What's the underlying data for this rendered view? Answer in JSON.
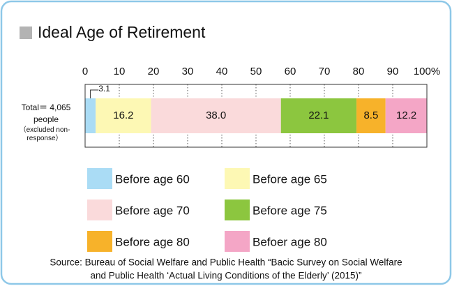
{
  "chart_data": {
    "type": "stacked-bar-horizontal",
    "title": "Ideal Age of Retirement",
    "categories": [
      "Total＝ 4,065 people"
    ],
    "category_note": "（excluded non-response）",
    "series": [
      {
        "name": "Before age 60",
        "color": "#aadcf5",
        "values": [
          3.1
        ]
      },
      {
        "name": "Before age 65",
        "color": "#fdf8b4",
        "values": [
          16.2
        ]
      },
      {
        "name": "Before age 70",
        "color": "#fadadb",
        "values": [
          38.0
        ],
        "value_labels": [
          "38.0"
        ]
      },
      {
        "name": "Before age 75",
        "color": "#8cc63f",
        "values": [
          22.1
        ]
      },
      {
        "name": "Before age 80",
        "color": "#f7b22a",
        "values": [
          8.5
        ]
      },
      {
        "name": "Befoer age 80",
        "color": "#f4a6c6",
        "values": [
          12.2
        ]
      }
    ],
    "xlim": [
      0,
      100
    ],
    "xticks": [
      0,
      10,
      20,
      30,
      40,
      50,
      60,
      70,
      80,
      90,
      {
        "value": 100,
        "label": "100%"
      }
    ],
    "grid": true,
    "source_lines": [
      "Source: Bureau of Social Welfare and Public Health “Bacic Survey on Social Welfare",
      "and Public Health ‘Actual Living Conditions of the Elderly’ (2015)”"
    ]
  }
}
